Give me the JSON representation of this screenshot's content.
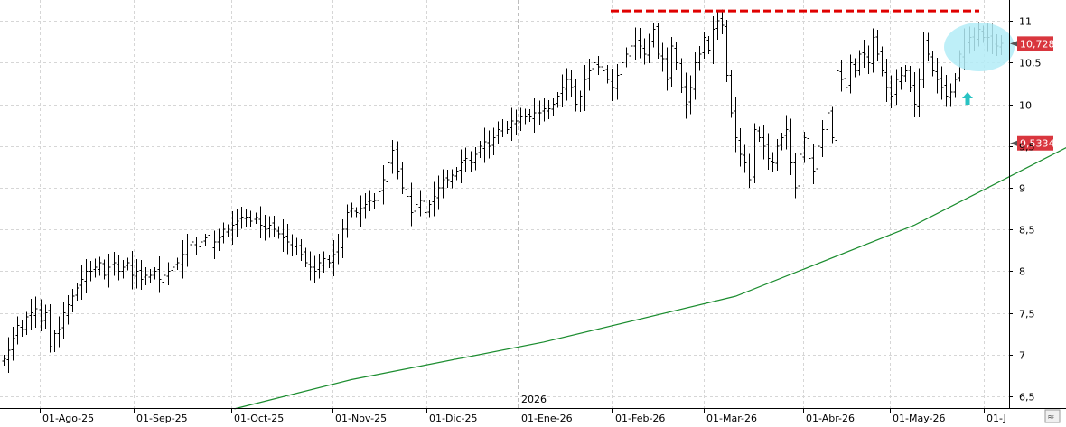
{
  "chart_data": {
    "type": "ohlc-bar",
    "year_label": "2026",
    "ylim": [
      6.35,
      11.3
    ],
    "y_ticks": [
      "6,5",
      "7",
      "7,5",
      "8",
      "8,5",
      "9",
      "9,5",
      "10",
      "10,5",
      "11"
    ],
    "y_tick_values": [
      6.5,
      7,
      7.5,
      8,
      8.5,
      9,
      9.5,
      10,
      10.5,
      11
    ],
    "x_tick_labels": [
      "01-Ago-25",
      "01-Sep-25",
      "01-Oct-25",
      "01-Nov-25",
      "01-Dic-25",
      "01-Ene-26",
      "01-Feb-26",
      "01-Mar-26",
      "01-Abr-26",
      "01-May-26",
      "01-J"
    ],
    "price_close": 10.728,
    "price_close_label": "10,728",
    "ma_last": 9.5334,
    "ma_last_label": "9,5334",
    "resistance": 11.12,
    "grid": true,
    "series": [
      {
        "kind": "price",
        "close": [
          6.95,
          7.05,
          7.2,
          7.35,
          7.3,
          7.45,
          7.5,
          7.55,
          7.4,
          7.5,
          7.1,
          7.25,
          7.3,
          7.5,
          7.6,
          7.7,
          7.8,
          7.9,
          8.0,
          8.0,
          8.05,
          8.1,
          7.95,
          8.05,
          8.1,
          8.0,
          8.05,
          8.1,
          7.95,
          8.0,
          7.9,
          7.95,
          7.95,
          8.0,
          7.9,
          7.95,
          8.0,
          8.05,
          8.1,
          8.2,
          8.3,
          8.35,
          8.3,
          8.35,
          8.4,
          8.3,
          8.35,
          8.4,
          8.5,
          8.5,
          8.55,
          8.6,
          8.65,
          8.65,
          8.6,
          8.65,
          8.55,
          8.5,
          8.55,
          8.5,
          8.45,
          8.4,
          8.35,
          8.3,
          8.3,
          8.2,
          8.1,
          8.05,
          8.0,
          8.1,
          8.15,
          8.1,
          8.2,
          8.3,
          8.5,
          8.7,
          8.75,
          8.7,
          8.75,
          8.8,
          8.85,
          8.85,
          8.95,
          9.1,
          9.3,
          9.45,
          9.2,
          9.0,
          8.9,
          8.7,
          8.8,
          8.85,
          8.7,
          8.8,
          8.9,
          9.0,
          9.1,
          9.1,
          9.15,
          9.2,
          9.3,
          9.35,
          9.3,
          9.4,
          9.5,
          9.55,
          9.5,
          9.6,
          9.7,
          9.75,
          9.7,
          9.8,
          9.8,
          9.85,
          9.85,
          9.85,
          9.9,
          9.9,
          9.95,
          9.95,
          10.0,
          10.1,
          10.2,
          10.3,
          10.2,
          10.0,
          10.1,
          10.3,
          10.4,
          10.5,
          10.45,
          10.4,
          10.3,
          10.2,
          10.35,
          10.5,
          10.6,
          10.7,
          10.75,
          10.7,
          10.6,
          10.75,
          10.9,
          10.6,
          10.55,
          10.3,
          10.7,
          10.5,
          10.2,
          10.0,
          10.2,
          10.5,
          10.6,
          10.8,
          10.65,
          10.9,
          11.0,
          10.95,
          10.35,
          9.9,
          9.6,
          9.4,
          9.3,
          9.1,
          9.7,
          9.6,
          9.5,
          9.35,
          9.3,
          9.5,
          9.6,
          9.7,
          9.3,
          9.0,
          9.4,
          9.6,
          9.35,
          9.2,
          9.5,
          9.7,
          9.9,
          9.6,
          10.4,
          10.3,
          10.2,
          10.5,
          10.4,
          10.6,
          10.6,
          10.5,
          10.8,
          10.6,
          10.4,
          10.2,
          10.1,
          10.3,
          10.35,
          10.4,
          10.2,
          10.0,
          10.3,
          10.75,
          10.6,
          10.4,
          10.3,
          10.2,
          10.1,
          10.15,
          10.3,
          10.6,
          10.75,
          10.8,
          10.75,
          10.9,
          10.8,
          10.8,
          10.75,
          10.7,
          10.73
        ]
      },
      {
        "kind": "moving-average",
        "color": "#1a8c2e",
        "anchor_index": [
          54,
          76,
          118,
          160,
          199,
          234
        ],
        "anchor_value": [
          6.35,
          6.7,
          7.15,
          7.7,
          8.55,
          9.53
        ]
      }
    ],
    "annotations": {
      "resistance_color": "#e00000",
      "highlight_color": "#b3ecf7",
      "arrow_color": "#29c3c3",
      "badge_color": "#d9363e"
    }
  }
}
